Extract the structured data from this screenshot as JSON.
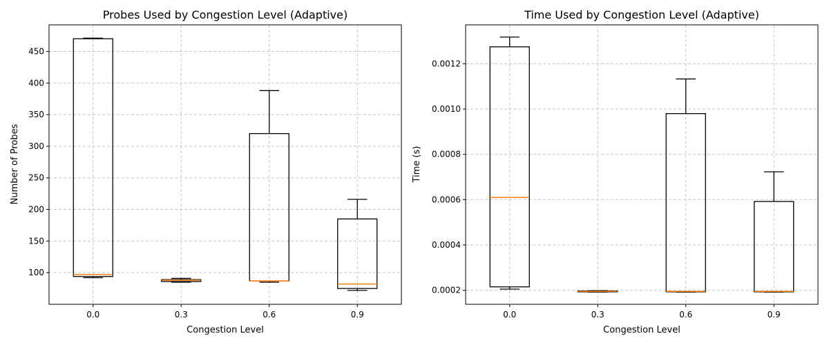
{
  "chart_data": [
    {
      "type": "box",
      "title": "Probes Used by Congestion Level (Adaptive)",
      "xlabel": "Congestion Level",
      "ylabel": "Number of Probes",
      "categories": [
        "0.0",
        "0.3",
        "0.6",
        "0.9"
      ],
      "ylim": [
        50,
        492
      ],
      "yticks": [
        100,
        150,
        200,
        250,
        300,
        350,
        400,
        450
      ],
      "ytick_labels": [
        "100",
        "150",
        "200",
        "250",
        "300",
        "350",
        "400",
        "450"
      ],
      "boxes": [
        {
          "whislo": 92,
          "q1": 94,
          "med": 97,
          "q3": 470,
          "whishi": 471
        },
        {
          "whislo": 85,
          "q1": 86,
          "med": 88,
          "q3": 89,
          "whishi": 91
        },
        {
          "whislo": 85,
          "q1": 87,
          "med": 87,
          "q3": 320,
          "whishi": 388
        },
        {
          "whislo": 72,
          "q1": 75,
          "med": 82,
          "q3": 185,
          "whishi": 216
        }
      ],
      "grid": true,
      "box_color": "#000000",
      "median_color": "#ff7f0e"
    },
    {
      "type": "box",
      "title": "Time Used by Congestion Level (Adaptive)",
      "xlabel": "Congestion Level",
      "ylabel": "Time (s)",
      "categories": [
        "0.0",
        "0.3",
        "0.6",
        "0.9"
      ],
      "ylim": [
        0.000138,
        0.001372
      ],
      "yticks": [
        0.0002,
        0.0004,
        0.0006,
        0.0008,
        0.001,
        0.0012
      ],
      "ytick_labels": [
        "0.0002",
        "0.0004",
        "0.0006",
        "0.0008",
        "0.0010",
        "0.0012"
      ],
      "boxes": [
        {
          "whislo": 0.000205,
          "q1": 0.000215,
          "med": 0.00061,
          "q3": 0.001275,
          "whishi": 0.001318
        },
        {
          "whislo": 0.000192,
          "q1": 0.000193,
          "med": 0.000195,
          "q3": 0.000197,
          "whishi": 0.000198
        },
        {
          "whislo": 0.000192,
          "q1": 0.000193,
          "med": 0.000195,
          "q3": 0.00098,
          "whishi": 0.001133
        },
        {
          "whislo": 0.000192,
          "q1": 0.000193,
          "med": 0.000195,
          "q3": 0.000592,
          "whishi": 0.000723
        }
      ],
      "grid": true,
      "box_color": "#000000",
      "median_color": "#ff7f0e"
    }
  ]
}
